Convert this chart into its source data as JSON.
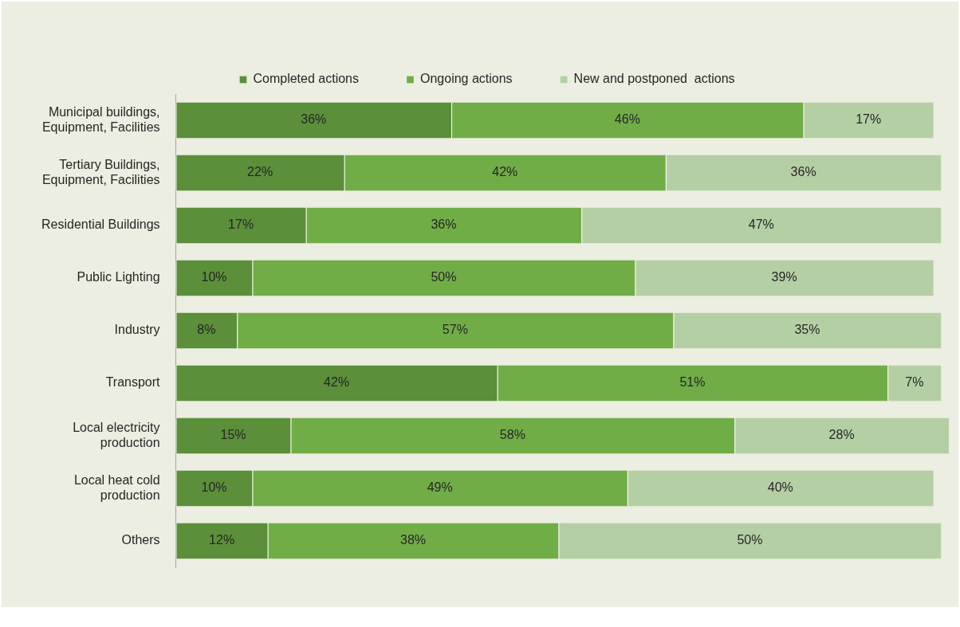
{
  "chart_data": {
    "type": "bar",
    "orientation": "horizontal",
    "stacked": true,
    "categories": [
      "Municipal buildings, Equipment, Facilities",
      "Tertiary Buildings, Equipment, Facilities",
      "Residential Buildings",
      "Public Lighting",
      "Industry",
      "Transport",
      "Local electricity production",
      "Local heat cold production",
      "Others"
    ],
    "series": [
      {
        "name": "Completed actions",
        "color": "#5b8f3a",
        "values": [
          36,
          22,
          17,
          10,
          8,
          42,
          15,
          10,
          12
        ],
        "value_labels": [
          "36%",
          "22%",
          "17%",
          "10%",
          "8%",
          "42%",
          "15%",
          "10%",
          "12%"
        ]
      },
      {
        "name": "Ongoing actions",
        "color": "#70ad47",
        "values": [
          46,
          42,
          36,
          50,
          57,
          51,
          58,
          49,
          38
        ],
        "value_labels": [
          "46%",
          "42%",
          "36%",
          "50%",
          "57%",
          "51%",
          "58%",
          "49%",
          "38%"
        ]
      },
      {
        "name": "New and postponed  actions",
        "color": "#b5cfa5",
        "values": [
          17,
          36,
          47,
          39,
          35,
          7,
          28,
          40,
          50
        ],
        "value_labels": [
          "17%",
          "36%",
          "47%",
          "39%",
          "35%",
          "7%",
          "28%",
          "40%",
          "50%"
        ]
      }
    ],
    "xlim": [
      0,
      101
    ],
    "tick_labels": "y",
    "grid": false,
    "legend": "top"
  }
}
